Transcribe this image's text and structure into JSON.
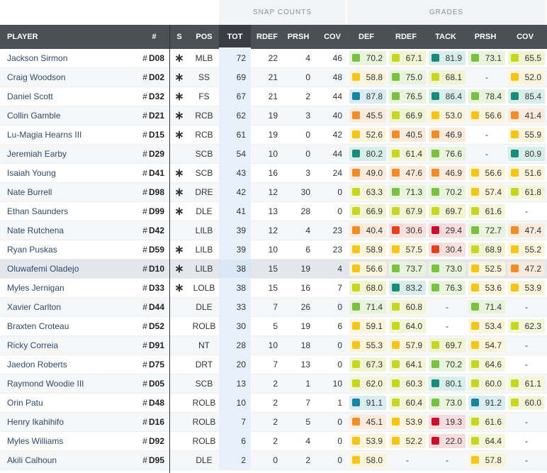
{
  "group_headers": {
    "snap_counts": "SNAP COUNTS",
    "grades": "GRADES"
  },
  "columns": {
    "player": "PLAYER",
    "num": "#",
    "s": "S",
    "pos": "POS",
    "tot": "TOT",
    "rdef": "RDEF",
    "prsh": "PRSH",
    "cov": "COV",
    "g_def": "DEF",
    "g_rdef": "RDEF",
    "g_tack": "TACK",
    "g_prsh": "PRSH",
    "g_cov": "COV"
  },
  "colors": {
    "elite": "#1b8a7a",
    "high": "#7ac143",
    "good": "#c5d71f",
    "avg": "#f5c518",
    "below": "#f28c28",
    "poor": "#e2421f",
    "bad": "#c8102e",
    "blue": "#17869c"
  },
  "rows": [
    {
      "name": "Jackson Sirmon",
      "hash": "#",
      "num": "D08",
      "starter": "∗",
      "pos": "MLB",
      "tot": "72",
      "rdef": "22",
      "prsh": "4",
      "cov": "46",
      "g": [
        "70.2",
        "67.1",
        "81.9",
        "73.1",
        "65.5"
      ]
    },
    {
      "name": "Craig Woodson",
      "hash": "#",
      "num": "D02",
      "starter": "∗",
      "pos": "SS",
      "tot": "69",
      "rdef": "21",
      "prsh": "0",
      "cov": "48",
      "g": [
        "58.8",
        "75.0",
        "68.1",
        "-",
        "52.0"
      ]
    },
    {
      "name": "Daniel Scott",
      "hash": "#",
      "num": "D32",
      "starter": "∗",
      "pos": "FS",
      "tot": "67",
      "rdef": "21",
      "prsh": "2",
      "cov": "44",
      "g": [
        "87.8",
        "76.5",
        "86.4",
        "78.4",
        "85.4"
      ]
    },
    {
      "name": "Collin Gamble",
      "hash": "#",
      "num": "D21",
      "starter": "∗",
      "pos": "RCB",
      "tot": "62",
      "rdef": "19",
      "prsh": "3",
      "cov": "40",
      "g": [
        "45.5",
        "66.9",
        "53.0",
        "56.6",
        "41.4"
      ]
    },
    {
      "name": "Lu-Magia Hearns III",
      "hash": "#",
      "num": "D15",
      "starter": "∗",
      "pos": "RCB",
      "tot": "61",
      "rdef": "19",
      "prsh": "0",
      "cov": "42",
      "g": [
        "52.6",
        "40.5",
        "46.9",
        "-",
        "55.9"
      ]
    },
    {
      "name": "Jeremiah Earby",
      "hash": "#",
      "num": "D29",
      "starter": "",
      "pos": "SCB",
      "tot": "54",
      "rdef": "10",
      "prsh": "0",
      "cov": "44",
      "g": [
        "80.2",
        "61.4",
        "76.6",
        "-",
        "80.9"
      ]
    },
    {
      "name": "Isaiah Young",
      "hash": "#",
      "num": "D41",
      "starter": "∗",
      "pos": "SCB",
      "tot": "43",
      "rdef": "16",
      "prsh": "3",
      "cov": "24",
      "g": [
        "49.0",
        "47.6",
        "46.9",
        "56.6",
        "51.6"
      ]
    },
    {
      "name": "Nate Burrell",
      "hash": "#",
      "num": "D98",
      "starter": "∗",
      "pos": "DRE",
      "tot": "42",
      "rdef": "12",
      "prsh": "30",
      "cov": "0",
      "g": [
        "63.3",
        "71.3",
        "70.2",
        "57.4",
        "61.8"
      ]
    },
    {
      "name": "Ethan Saunders",
      "hash": "#",
      "num": "D99",
      "starter": "∗",
      "pos": "DLE",
      "tot": "41",
      "rdef": "13",
      "prsh": "28",
      "cov": "0",
      "g": [
        "66.9",
        "67.9",
        "69.7",
        "61.6",
        "-"
      ]
    },
    {
      "name": "Nate Rutchena",
      "hash": "#",
      "num": "D42",
      "starter": "",
      "pos": "LILB",
      "tot": "39",
      "rdef": "12",
      "prsh": "4",
      "cov": "23",
      "g": [
        "40.4",
        "30.6",
        "29.4",
        "72.7",
        "47.4"
      ]
    },
    {
      "name": "Ryan Puskas",
      "hash": "#",
      "num": "D59",
      "starter": "∗",
      "pos": "LILB",
      "tot": "39",
      "rdef": "10",
      "prsh": "6",
      "cov": "23",
      "g": [
        "58.9",
        "57.5",
        "30.4",
        "68.9",
        "55.2"
      ]
    },
    {
      "name": "Oluwafemi Oladejo",
      "hash": "#",
      "num": "D10",
      "starter": "∗",
      "pos": "LILB",
      "tot": "38",
      "rdef": "15",
      "prsh": "19",
      "cov": "4",
      "g": [
        "56.6",
        "73.7",
        "73.0",
        "52.5",
        "47.2"
      ]
    },
    {
      "name": "Myles Jernigan",
      "hash": "#",
      "num": "D33",
      "starter": "∗",
      "pos": "LOLB",
      "tot": "38",
      "rdef": "15",
      "prsh": "16",
      "cov": "7",
      "g": [
        "68.0",
        "83.2",
        "76.3",
        "53.6",
        "53.9"
      ]
    },
    {
      "name": "Xavier Carlton",
      "hash": "#",
      "num": "D44",
      "starter": "",
      "pos": "DLE",
      "tot": "33",
      "rdef": "7",
      "prsh": "26",
      "cov": "0",
      "g": [
        "71.4",
        "60.8",
        "-",
        "71.4",
        "-"
      ]
    },
    {
      "name": "Braxten Croteau",
      "hash": "#",
      "num": "D52",
      "starter": "",
      "pos": "ROLB",
      "tot": "30",
      "rdef": "5",
      "prsh": "19",
      "cov": "6",
      "g": [
        "59.1",
        "64.0",
        "-",
        "53.4",
        "62.3"
      ]
    },
    {
      "name": "Ricky Correia",
      "hash": "#",
      "num": "D91",
      "starter": "",
      "pos": "NT",
      "tot": "28",
      "rdef": "10",
      "prsh": "18",
      "cov": "0",
      "g": [
        "55.3",
        "57.9",
        "69.7",
        "54.7",
        "-"
      ]
    },
    {
      "name": "Jaedon Roberts",
      "hash": "#",
      "num": "D75",
      "starter": "",
      "pos": "DRT",
      "tot": "20",
      "rdef": "7",
      "prsh": "13",
      "cov": "0",
      "g": [
        "67.3",
        "64.1",
        "70.2",
        "64.6",
        "-"
      ]
    },
    {
      "name": "Raymond Woodie III",
      "hash": "#",
      "num": "D05",
      "starter": "",
      "pos": "SCB",
      "tot": "13",
      "rdef": "2",
      "prsh": "1",
      "cov": "10",
      "g": [
        "62.0",
        "60.3",
        "80.1",
        "60.0",
        "61.1"
      ]
    },
    {
      "name": "Orin Patu",
      "hash": "#",
      "num": "D48",
      "starter": "",
      "pos": "ROLB",
      "tot": "10",
      "rdef": "2",
      "prsh": "7",
      "cov": "1",
      "g": [
        "91.1",
        "60.4",
        "73.0",
        "91.2",
        "60.0"
      ]
    },
    {
      "name": "Henry Ikahihifo",
      "hash": "#",
      "num": "D16",
      "starter": "",
      "pos": "ROLB",
      "tot": "7",
      "rdef": "2",
      "prsh": "5",
      "cov": "0",
      "g": [
        "45.1",
        "53.9",
        "19.3",
        "61.6",
        "-"
      ]
    },
    {
      "name": "Myles Williams",
      "hash": "#",
      "num": "D92",
      "starter": "",
      "pos": "ROLB",
      "tot": "6",
      "rdef": "2",
      "prsh": "4",
      "cov": "0",
      "g": [
        "53.9",
        "52.2",
        "22.0",
        "64.4",
        "-"
      ]
    },
    {
      "name": "Akili Calhoun",
      "hash": "#",
      "num": "D95",
      "starter": "",
      "pos": "DLE",
      "tot": "2",
      "rdef": "0",
      "prsh": "2",
      "cov": "0",
      "g": [
        "58.0",
        "-",
        "-",
        "57.8",
        "-"
      ]
    }
  ]
}
